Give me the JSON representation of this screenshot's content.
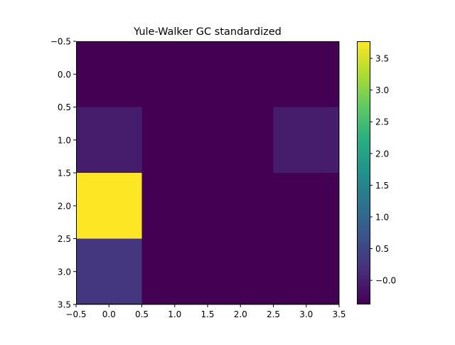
{
  "chart_data": {
    "type": "heatmap",
    "title": "Yule-Walker GC standardized",
    "xlabel": "",
    "ylabel": "",
    "rows": 4,
    "cols": 4,
    "xlim": [
      -0.5,
      3.5
    ],
    "ylim": [
      3.5,
      -0.5
    ],
    "x_ticks": [
      "−0.5",
      "0.0",
      "0.5",
      "1.0",
      "1.5",
      "2.0",
      "2.5",
      "3.0",
      "3.5"
    ],
    "y_ticks": [
      "−0.5",
      "0.0",
      "0.5",
      "1.0",
      "1.5",
      "2.0",
      "2.5",
      "3.0",
      "3.5"
    ],
    "values": [
      [
        -0.38,
        -0.38,
        -0.38,
        -0.38
      ],
      [
        -0.05,
        -0.38,
        -0.38,
        -0.05
      ],
      [
        3.77,
        -0.38,
        -0.38,
        -0.38
      ],
      [
        0.28,
        -0.38,
        -0.38,
        -0.38
      ]
    ],
    "colormap": "viridis",
    "colorbar": {
      "min": -0.38,
      "max": 3.77,
      "ticks": [
        -0.0,
        0.5,
        1.0,
        1.5,
        2.0,
        2.5,
        3.0,
        3.5
      ],
      "tick_labels": [
        "−0.0",
        "0.5",
        "1.0",
        "1.5",
        "2.0",
        "2.5",
        "3.0",
        "3.5"
      ]
    },
    "grid": false
  }
}
